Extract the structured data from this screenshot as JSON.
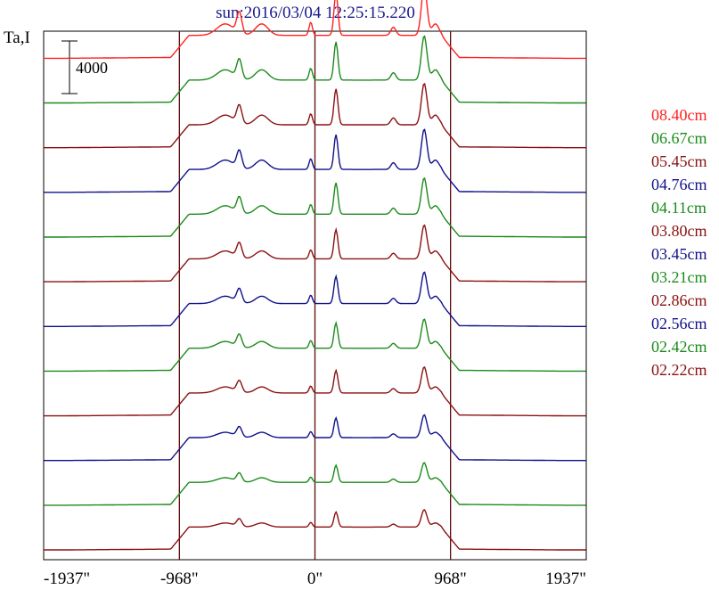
{
  "chart_data": {
    "type": "line",
    "title": "sun:2016/03/04 12:25:15.220",
    "ylabel": "Ta,I",
    "scale_bar_label": "4000",
    "scale_bar_value": 4000,
    "x_ticks": [
      {
        "value": -1937,
        "label": "-1937\""
      },
      {
        "value": -968,
        "label": "-968\""
      },
      {
        "value": 0,
        "label": "0\""
      },
      {
        "value": 968,
        "label": "968\""
      },
      {
        "value": 1937,
        "label": "1937\""
      }
    ],
    "xlim": [
      -1937,
      1937
    ],
    "vertical_lines": [
      -968,
      0,
      968
    ],
    "grid": false,
    "legend_position": "right",
    "stack_offset": 3400,
    "series": [
      {
        "name": "08.40cm",
        "color": "#ff2020",
        "baseline": 37000,
        "scale": 1.25
      },
      {
        "name": "06.67cm",
        "color": "#1a8a1a",
        "baseline": 33600,
        "scale": 1.12
      },
      {
        "name": "05.45cm",
        "color": "#8b1010",
        "baseline": 30200,
        "scale": 1.05
      },
      {
        "name": "04.76cm",
        "color": "#10108b",
        "baseline": 26800,
        "scale": 1.02
      },
      {
        "name": "04.11cm",
        "color": "#1a8a1a",
        "baseline": 23400,
        "scale": 0.92
      },
      {
        "name": "03.80cm",
        "color": "#8b1010",
        "baseline": 20000,
        "scale": 0.86
      },
      {
        "name": "03.45cm",
        "color": "#10108b",
        "baseline": 16600,
        "scale": 0.8
      },
      {
        "name": "03.21cm",
        "color": "#1a8a1a",
        "baseline": 13200,
        "scale": 0.74
      },
      {
        "name": "02.86cm",
        "color": "#8b1010",
        "baseline": 9800,
        "scale": 0.66
      },
      {
        "name": "02.56cm",
        "color": "#10108b",
        "baseline": 6400,
        "scale": 0.58
      },
      {
        "name": "02.42cm",
        "color": "#1a8a1a",
        "baseline": 3000,
        "scale": 0.5
      },
      {
        "name": "02.22cm",
        "color": "#8b1010",
        "baseline": -400,
        "scale": 0.44
      }
    ]
  }
}
